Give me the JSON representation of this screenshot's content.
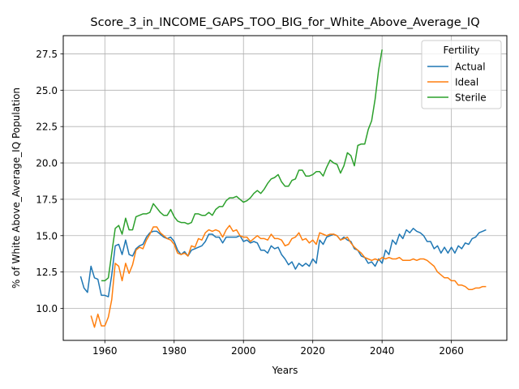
{
  "chart_data": {
    "type": "line",
    "title": "Score_3_in_INCOME_GAPS_TOO_BIG_for_White_Above_Average_IQ",
    "xlabel": "Years",
    "ylabel": "% of White Above_Average_IQ Population",
    "xlim": [
      1948,
      2076
    ],
    "ylim": [
      7.8,
      28.75
    ],
    "xticks": [
      1960,
      1980,
      2000,
      2020,
      2040,
      2060
    ],
    "yticks": [
      10.0,
      12.5,
      15.0,
      17.5,
      20.0,
      22.5,
      25.0,
      27.5
    ],
    "grid": true,
    "legend": {
      "title": "Fertility",
      "placement": "top-right"
    },
    "series": [
      {
        "name": "Actual",
        "color": "#1f77b4",
        "x": [
          1953,
          1954,
          1955,
          1956,
          1957,
          1958,
          1959,
          1960,
          1961,
          1962,
          1963,
          1964,
          1965,
          1966,
          1967,
          1968,
          1969,
          1970,
          1971,
          1972,
          1973,
          1974,
          1975,
          1976,
          1977,
          1978,
          1979,
          1980,
          1981,
          1982,
          1983,
          1984,
          1985,
          1986,
          1987,
          1988,
          1989,
          1990,
          1991,
          1992,
          1993,
          1994,
          1995,
          1996,
          1997,
          1998,
          1999,
          2000,
          2001,
          2002,
          2003,
          2004,
          2005,
          2006,
          2007,
          2008,
          2009,
          2010,
          2011,
          2012,
          2013,
          2014,
          2015,
          2016,
          2017,
          2018,
          2019,
          2020,
          2021,
          2022,
          2023,
          2024,
          2025,
          2026,
          2027,
          2028,
          2029,
          2030,
          2031,
          2032,
          2033,
          2034,
          2035,
          2036,
          2037,
          2038,
          2039,
          2040,
          2041,
          2042,
          2043,
          2044,
          2045,
          2046,
          2047,
          2048,
          2049,
          2050,
          2051,
          2052,
          2053,
          2054,
          2055,
          2056,
          2057,
          2058,
          2059,
          2060,
          2061,
          2062,
          2063,
          2064,
          2065,
          2066,
          2067,
          2068,
          2069,
          2070
        ],
        "values": [
          12.2,
          11.4,
          11.1,
          12.9,
          12.1,
          12.0,
          10.9,
          10.9,
          10.8,
          12.3,
          14.3,
          14.4,
          13.7,
          14.7,
          13.7,
          13.6,
          14.1,
          14.3,
          14.4,
          14.9,
          15.2,
          15.3,
          15.3,
          15.1,
          14.9,
          14.8,
          14.9,
          14.6,
          14.0,
          13.7,
          13.9,
          13.6,
          14.0,
          14.1,
          14.2,
          14.3,
          14.6,
          15.1,
          15.1,
          14.9,
          14.9,
          14.5,
          14.9,
          14.9,
          14.9,
          14.9,
          15.0,
          14.6,
          14.7,
          14.5,
          14.6,
          14.5,
          14.0,
          14.0,
          13.8,
          14.3,
          14.1,
          14.2,
          13.7,
          13.4,
          13.0,
          13.2,
          12.7,
          13.1,
          12.9,
          13.1,
          12.9,
          13.4,
          13.1,
          14.7,
          14.4,
          14.9,
          15.0,
          15.1,
          15.0,
          14.7,
          14.9,
          14.7,
          14.6,
          14.1,
          14.0,
          13.6,
          13.5,
          13.1,
          13.2,
          12.9,
          13.4,
          13.1,
          14.0,
          13.7,
          14.7,
          14.4,
          15.1,
          14.8,
          15.4,
          15.2,
          15.5,
          15.3,
          15.2,
          15.0,
          14.6,
          14.6,
          14.1,
          14.3,
          13.8,
          14.2,
          13.8,
          14.2,
          13.8,
          14.3,
          14.1,
          14.5,
          14.4,
          14.8,
          14.9,
          15.2,
          15.3,
          15.4
        ]
      },
      {
        "name": "Ideal",
        "color": "#ff7f0e",
        "x": [
          1956,
          1957,
          1958,
          1959,
          1960,
          1961,
          1962,
          1963,
          1964,
          1965,
          1966,
          1967,
          1968,
          1969,
          1970,
          1971,
          1972,
          1973,
          1974,
          1975,
          1976,
          1977,
          1978,
          1979,
          1980,
          1981,
          1982,
          1983,
          1984,
          1985,
          1986,
          1987,
          1988,
          1989,
          1990,
          1991,
          1992,
          1993,
          1994,
          1995,
          1996,
          1997,
          1998,
          1999,
          2000,
          2001,
          2002,
          2003,
          2004,
          2005,
          2006,
          2007,
          2008,
          2009,
          2010,
          2011,
          2012,
          2013,
          2014,
          2015,
          2016,
          2017,
          2018,
          2019,
          2020,
          2021,
          2022,
          2023,
          2024,
          2025,
          2026,
          2027,
          2028,
          2029,
          2030,
          2031,
          2032,
          2033,
          2034,
          2035,
          2036,
          2037,
          2038,
          2039,
          2040,
          2041,
          2042,
          2043,
          2044,
          2045,
          2046,
          2047,
          2048,
          2049,
          2050,
          2051,
          2052,
          2053,
          2054,
          2055,
          2056,
          2057,
          2058,
          2059,
          2060,
          2061,
          2062,
          2063,
          2064,
          2065,
          2066,
          2067,
          2068,
          2069,
          2070
        ],
        "values": [
          9.5,
          8.7,
          9.6,
          8.8,
          8.8,
          9.4,
          10.6,
          13.1,
          12.9,
          11.9,
          13.1,
          12.4,
          13.0,
          14.0,
          14.2,
          14.1,
          14.7,
          15.1,
          15.6,
          15.6,
          15.2,
          15.0,
          14.8,
          14.7,
          14.4,
          13.8,
          13.7,
          13.8,
          13.6,
          14.3,
          14.2,
          14.8,
          14.7,
          15.2,
          15.4,
          15.3,
          15.4,
          15.3,
          14.9,
          15.4,
          15.7,
          15.3,
          15.4,
          15.0,
          14.9,
          14.9,
          14.6,
          14.8,
          15.0,
          14.8,
          14.8,
          14.7,
          15.1,
          14.8,
          14.8,
          14.7,
          14.3,
          14.4,
          14.8,
          14.9,
          15.2,
          14.7,
          14.8,
          14.5,
          14.7,
          14.4,
          15.2,
          15.1,
          15.0,
          15.1,
          15.1,
          15.0,
          14.7,
          14.8,
          14.9,
          14.5,
          14.2,
          14.0,
          13.8,
          13.5,
          13.4,
          13.3,
          13.4,
          13.3,
          13.5,
          13.4,
          13.5,
          13.4,
          13.4,
          13.5,
          13.3,
          13.3,
          13.3,
          13.4,
          13.3,
          13.4,
          13.4,
          13.3,
          13.1,
          12.9,
          12.5,
          12.3,
          12.1,
          12.1,
          11.9,
          11.9,
          11.6,
          11.6,
          11.5,
          11.3,
          11.3,
          11.4,
          11.4,
          11.5,
          11.5
        ]
      },
      {
        "name": "Sterile",
        "color": "#2ca02c",
        "x": [
          1959,
          1960,
          1961,
          1962,
          1963,
          1964,
          1965,
          1966,
          1967,
          1968,
          1969,
          1970,
          1971,
          1972,
          1973,
          1974,
          1975,
          1976,
          1977,
          1978,
          1979,
          1980,
          1981,
          1982,
          1983,
          1984,
          1985,
          1986,
          1987,
          1988,
          1989,
          1990,
          1991,
          1992,
          1993,
          1994,
          1995,
          1996,
          1997,
          1998,
          1999,
          2000,
          2001,
          2002,
          2003,
          2004,
          2005,
          2006,
          2007,
          2008,
          2009,
          2010,
          2011,
          2012,
          2013,
          2014,
          2015,
          2016,
          2017,
          2018,
          2019,
          2020,
          2021,
          2022,
          2023,
          2024,
          2025,
          2026,
          2027,
          2028,
          2029,
          2030,
          2031,
          2032,
          2033,
          2034,
          2035,
          2036,
          2037,
          2038,
          2039,
          2040
        ],
        "values": [
          11.9,
          11.9,
          12.1,
          13.8,
          15.5,
          15.7,
          15.1,
          16.2,
          15.4,
          15.4,
          16.3,
          16.4,
          16.5,
          16.5,
          16.6,
          17.2,
          16.9,
          16.6,
          16.4,
          16.4,
          16.8,
          16.3,
          16.0,
          15.9,
          15.9,
          15.8,
          15.9,
          16.5,
          16.5,
          16.4,
          16.4,
          16.6,
          16.4,
          16.8,
          17.0,
          17.0,
          17.4,
          17.6,
          17.6,
          17.7,
          17.5,
          17.3,
          17.4,
          17.6,
          17.9,
          18.1,
          17.9,
          18.2,
          18.6,
          18.9,
          19.0,
          19.2,
          18.7,
          18.4,
          18.4,
          18.8,
          18.9,
          19.5,
          19.5,
          19.1,
          19.1,
          19.2,
          19.4,
          19.4,
          19.1,
          19.7,
          20.2,
          20.0,
          19.9,
          19.3,
          19.8,
          20.7,
          20.5,
          19.8,
          21.2,
          21.3,
          21.3,
          22.3,
          22.9,
          24.4,
          26.4,
          27.8
        ]
      }
    ]
  }
}
